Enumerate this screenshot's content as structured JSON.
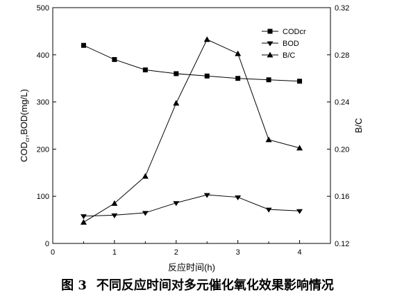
{
  "chart_data": {
    "type": "line",
    "x": [
      0.5,
      1,
      1.5,
      2,
      2.5,
      3,
      3.5,
      4
    ],
    "xlim": [
      0,
      4.5
    ],
    "xticks": [
      "0",
      "1",
      "2",
      "3",
      "4"
    ],
    "xlabel": "反应时间(h)",
    "y_left": {
      "label_main": "COD",
      "label_sub": "cr",
      "label_rest": ",BOD(mg/L)",
      "ylim": [
        0,
        500
      ],
      "ticks": [
        "0",
        "100",
        "200",
        "300",
        "400",
        "500"
      ]
    },
    "y_right": {
      "label": "B/C",
      "ylim": [
        0.12,
        0.32
      ],
      "ticks": [
        "0.12",
        "0.16",
        "0.20",
        "0.24",
        "0.28",
        "0.32"
      ]
    },
    "series": [
      {
        "name": "CODcr",
        "axis": "left",
        "marker": "square",
        "values": [
          420,
          390,
          368,
          360,
          355,
          350,
          347,
          344
        ]
      },
      {
        "name": "BOD",
        "axis": "left",
        "marker": "triangle-down",
        "values": [
          58,
          60,
          65,
          86,
          103,
          98,
          72,
          69
        ]
      },
      {
        "name": "B/C",
        "axis": "right",
        "marker": "triangle-up",
        "values": [
          0.138,
          0.154,
          0.177,
          0.239,
          0.293,
          0.281,
          0.208,
          0.201
        ]
      }
    ],
    "legend_position": "top-right",
    "grid": false
  },
  "caption": {
    "figure_number": "图 3",
    "text": "不同反应时间对多元催化氧化效果影响情况"
  }
}
